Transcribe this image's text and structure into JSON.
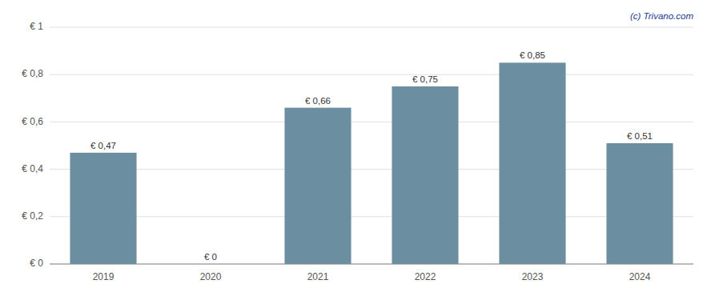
{
  "chart_data": {
    "type": "bar",
    "categories": [
      "2019",
      "2020",
      "2021",
      "2022",
      "2023",
      "2024"
    ],
    "values": [
      0.47,
      0.0,
      0.66,
      0.75,
      0.85,
      0.51
    ],
    "value_labels": [
      "€ 0,47",
      "€ 0",
      "€ 0,66",
      "€ 0,75",
      "€ 0,85",
      "€ 0,51"
    ],
    "data_labels": true,
    "color": "#6b8ea1",
    "ylim": [
      0,
      1.0
    ],
    "yticks": [
      {
        "value": 0,
        "label": "€ 0"
      },
      {
        "value": 0.2,
        "label": "€ 0,2"
      },
      {
        "value": 0.4,
        "label": "€ 0,4"
      },
      {
        "value": 0.6,
        "label": "€ 0,6"
      },
      {
        "value": 0.8,
        "label": "€ 0,8"
      },
      {
        "value": 1.0,
        "label": "€ 1"
      }
    ],
    "grid": true,
    "annotation": "(c) Trivano.com"
  }
}
